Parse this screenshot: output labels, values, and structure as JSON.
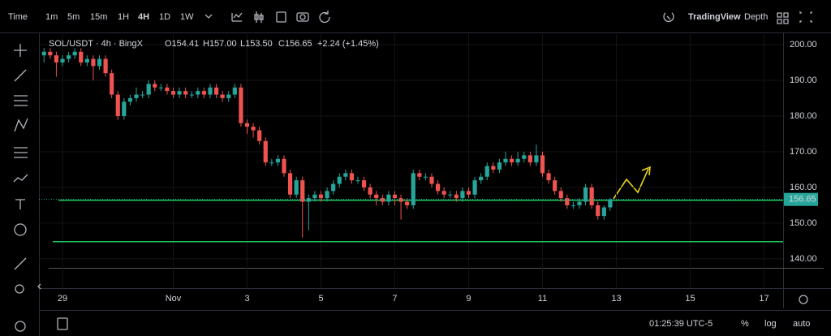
{
  "toolbar": {
    "items": [
      "Time",
      "1m",
      "5m",
      "15m",
      "1H",
      "4H",
      "1D",
      "1W"
    ],
    "brand": "TradingView",
    "depth": "Depth"
  },
  "status_bar": {
    "clock": "01:25:39 UTC-5",
    "percent": "%",
    "log": "log",
    "auto": "auto"
  },
  "chart_data": {
    "type": "candlestick",
    "title": "SOL/USDT · 4h · BingX",
    "ohlc_labels": [
      "O154.41",
      "H157.00",
      "L153.50",
      "C156.65",
      "+2.24 (+1.45%)"
    ],
    "up_color": "#26a69a",
    "down_color": "#ef5350",
    "grid": true,
    "x": [
      -12,
      -8,
      -4,
      0,
      4,
      8,
      12,
      16,
      20,
      24,
      28,
      32,
      36,
      40,
      44,
      48,
      52,
      56,
      60,
      64,
      68,
      72,
      76,
      80,
      84,
      88,
      92,
      96,
      100,
      104,
      108,
      112,
      116,
      120,
      124,
      128,
      132,
      136,
      140,
      144,
      148,
      152,
      156,
      160,
      164,
      168,
      172,
      176,
      180,
      184,
      188,
      192,
      196,
      200,
      204,
      208,
      212,
      216,
      220,
      224,
      228,
      232,
      236,
      240,
      244,
      248,
      252,
      256,
      260,
      264,
      268,
      272,
      276,
      280,
      284,
      288,
      292,
      296,
      300,
      304,
      308,
      312,
      316,
      320,
      324,
      328,
      332,
      336,
      340,
      344,
      348,
      352,
      356
    ],
    "open": [
      197,
      198,
      197,
      195,
      196,
      197,
      198,
      195,
      196,
      194,
      196,
      192,
      186,
      180,
      184,
      185,
      186,
      186,
      189,
      188,
      188,
      187,
      186,
      187,
      186,
      186,
      187,
      186,
      188,
      186,
      185,
      186,
      188,
      178,
      177,
      176,
      173,
      167,
      167,
      168,
      164,
      158,
      162,
      156,
      157,
      158,
      157,
      159,
      161,
      163,
      164,
      162,
      162,
      160,
      158,
      157,
      156,
      158,
      157,
      156,
      155,
      164,
      163,
      163,
      161,
      159,
      158,
      158,
      157,
      159,
      158,
      162,
      163,
      166,
      165,
      167,
      168,
      167,
      168,
      169,
      167,
      169,
      164,
      162,
      159,
      157,
      155,
      155,
      156,
      160,
      155,
      152,
      154.41
    ],
    "high": [
      199,
      199,
      198,
      197,
      198,
      199,
      199,
      197,
      197,
      197,
      197,
      193,
      187,
      185,
      186,
      188,
      187,
      190,
      190,
      189,
      189,
      188,
      188,
      188,
      187,
      188,
      188,
      189,
      189,
      187,
      187,
      189,
      189,
      179,
      178,
      177,
      174,
      168,
      169,
      169,
      165,
      163,
      163,
      158,
      159,
      159,
      160,
      162,
      164,
      165,
      165,
      163,
      163,
      161,
      159,
      158,
      159,
      159,
      158,
      157,
      165,
      165,
      164,
      164,
      162,
      160,
      159,
      159,
      160,
      160,
      163,
      164,
      167,
      167,
      168,
      170,
      169,
      170,
      170,
      170,
      172,
      170,
      165,
      163,
      160,
      158,
      156,
      157,
      161,
      161,
      156,
      155,
      157
    ],
    "low": [
      195,
      196,
      191,
      194,
      195,
      196,
      194,
      194,
      190,
      193,
      191,
      185,
      179,
      179,
      183,
      184,
      185,
      185,
      187,
      187,
      186,
      185,
      185,
      185,
      185,
      185,
      185,
      185,
      185,
      184,
      184,
      185,
      177,
      175,
      174,
      172,
      166,
      166,
      166,
      163,
      157,
      157,
      146,
      148,
      156,
      156,
      156,
      158,
      160,
      162,
      161,
      161,
      159,
      157,
      155,
      155,
      155,
      155,
      151,
      154,
      154,
      162,
      162,
      160,
      158,
      157,
      157,
      156,
      156,
      157,
      157,
      161,
      162,
      164,
      164,
      166,
      166,
      166,
      167,
      166,
      166,
      163,
      161,
      158,
      156,
      154,
      154,
      154,
      155,
      154,
      151,
      151,
      153.5
    ],
    "close": [
      198,
      197,
      195,
      196,
      197,
      198,
      195,
      196,
      194,
      196,
      192,
      186,
      180,
      184,
      185,
      186,
      186,
      189,
      188,
      188,
      187,
      186,
      187,
      186,
      186,
      187,
      186,
      188,
      186,
      185,
      186,
      188,
      178,
      177,
      176,
      173,
      167,
      167,
      168,
      164,
      158,
      162,
      156,
      157,
      158,
      157,
      159,
      161,
      163,
      164,
      162,
      162,
      160,
      158,
      157,
      156,
      158,
      157,
      156,
      155,
      164,
      163,
      163,
      161,
      159,
      158,
      158,
      157,
      159,
      158,
      162,
      163,
      166,
      165,
      167,
      168,
      167,
      168,
      169,
      167,
      169,
      164,
      162,
      159,
      157,
      155,
      155,
      156,
      160,
      155,
      152,
      154.41,
      156.65
    ],
    "levels": [
      {
        "value": 156.4,
        "color": "#22c55e"
      },
      {
        "value": 144.8,
        "color": "#22c55e"
      }
    ],
    "xlim": [
      -15.3,
      468.4
    ],
    "xticks": [
      {
        "value": 0,
        "label": "29"
      },
      {
        "value": 72,
        "label": "Nov"
      },
      {
        "value": 120,
        "label": "3"
      },
      {
        "value": 168,
        "label": "5"
      },
      {
        "value": 216,
        "label": "7"
      },
      {
        "value": 264,
        "label": "9"
      },
      {
        "value": 312,
        "label": "11"
      },
      {
        "value": 360,
        "label": "13"
      },
      {
        "value": 408,
        "label": "15"
      },
      {
        "value": 456,
        "label": "17"
      }
    ],
    "ylim": [
      131.8,
      202.95
    ],
    "yticks": [
      {
        "value": 140,
        "label": "140.00"
      },
      {
        "value": 150,
        "label": "150.00"
      },
      {
        "value": 160,
        "label": "160.00"
      },
      {
        "value": 170,
        "label": "170.00"
      },
      {
        "value": 180,
        "label": "180.00"
      },
      {
        "value": 190,
        "label": "190.00"
      },
      {
        "value": 200,
        "label": "200.00"
      }
    ]
  }
}
